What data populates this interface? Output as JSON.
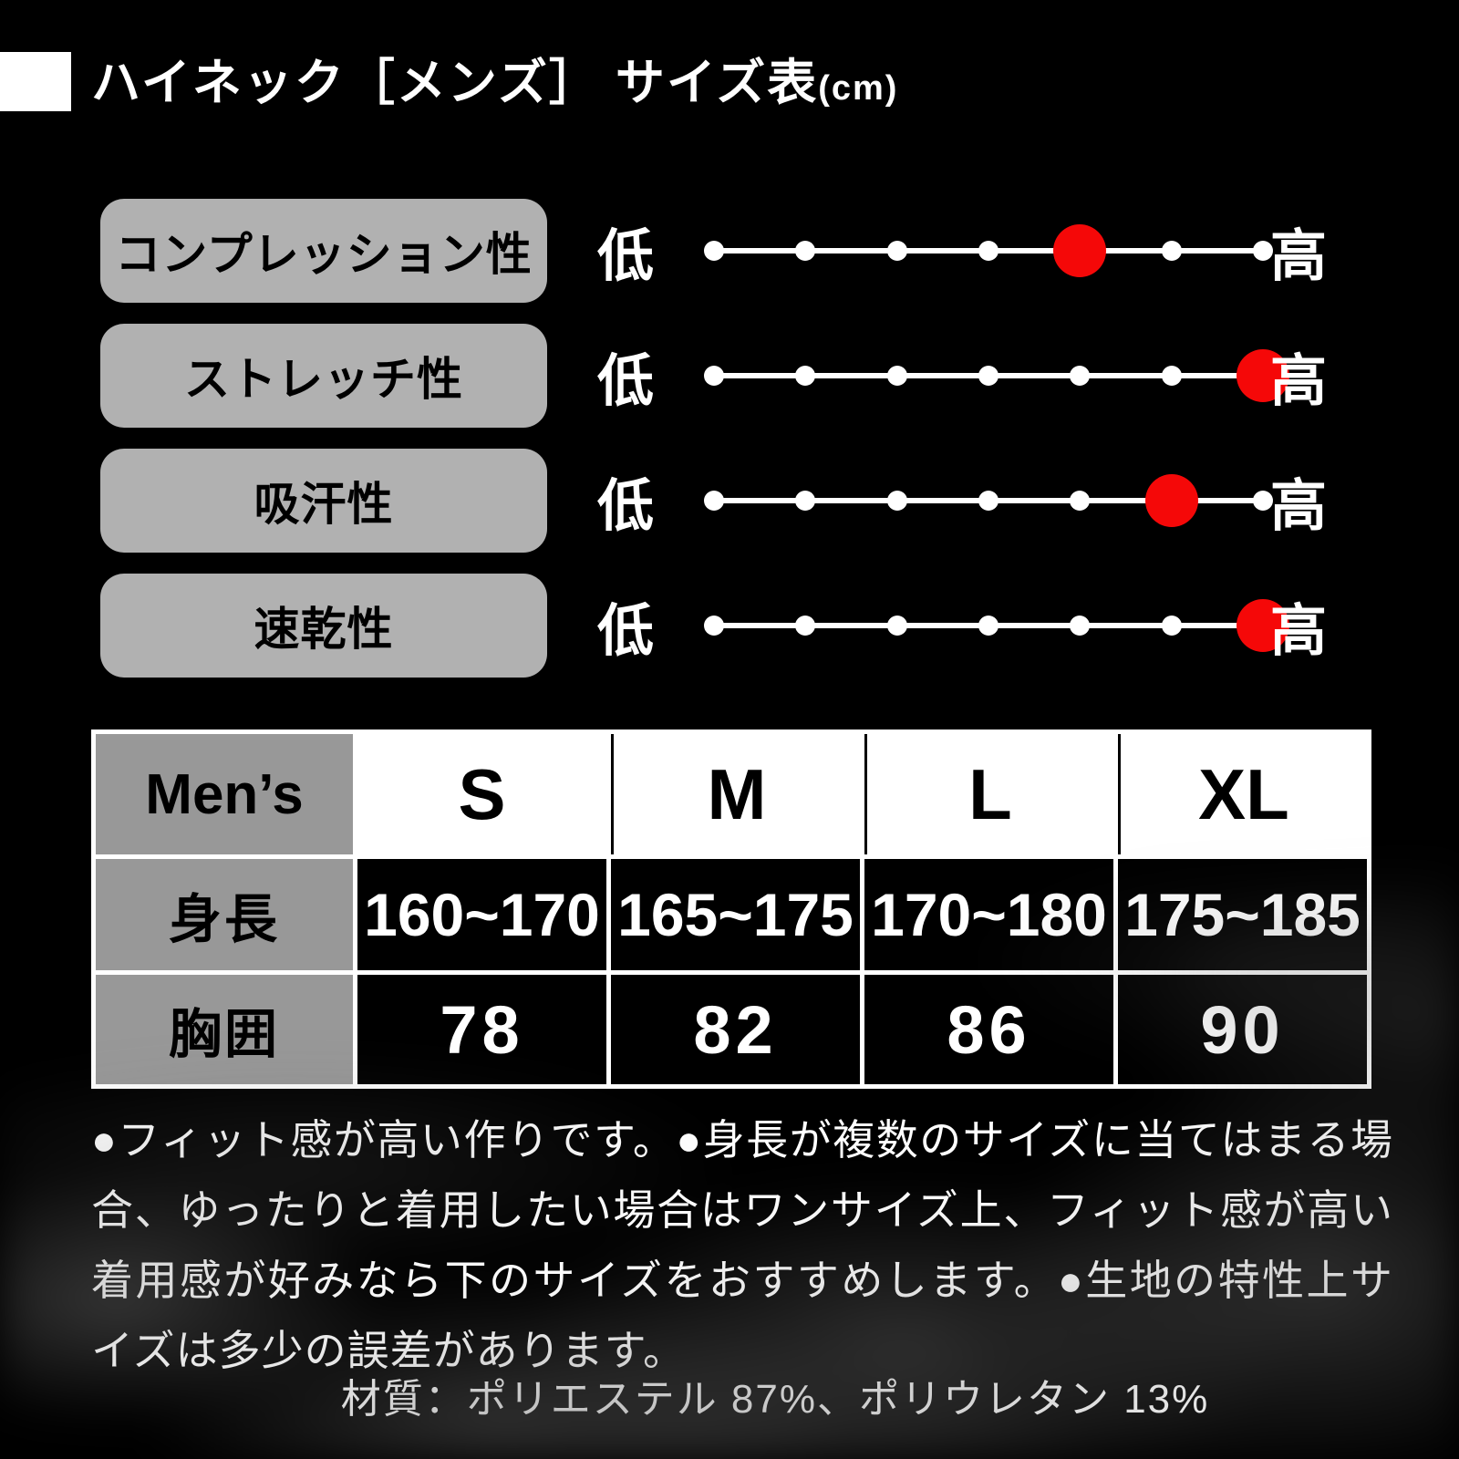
{
  "header": {
    "title": "ハイネック［メンズ］ サイズ表",
    "unit": "(cm)"
  },
  "ratings": {
    "low_label": "低",
    "high_label": "高",
    "scale_points": 7,
    "dot_color": "#ffffff",
    "marker_color": "#f50808",
    "items": [
      {
        "label": "コンプレッション性",
        "level": 5
      },
      {
        "label": "ストレッチ性",
        "level": 7
      },
      {
        "label": "吸汗性",
        "level": 6
      },
      {
        "label": "速乾性",
        "level": 7
      }
    ]
  },
  "size_table": {
    "header": [
      "Men’s",
      "S",
      "M",
      "L",
      "XL"
    ],
    "rows": [
      {
        "label": "身長",
        "values": [
          "160~170",
          "165~175",
          "170~180",
          "175~185"
        ]
      },
      {
        "label": "胸囲",
        "values": [
          "78",
          "82",
          "86",
          "90"
        ]
      }
    ]
  },
  "notes": "●フィット感が高い作りです。●身長が複数のサイズに当てはまる場合、ゆったりと着用したい場合はワンサイズ上、フィット感が高い着用感が好みなら下のサイズをおすすめします。●生地の特性上サイズは多少の誤差があります。",
  "material": "材質：ポリエステル 87%、ポリウレタン 13%"
}
